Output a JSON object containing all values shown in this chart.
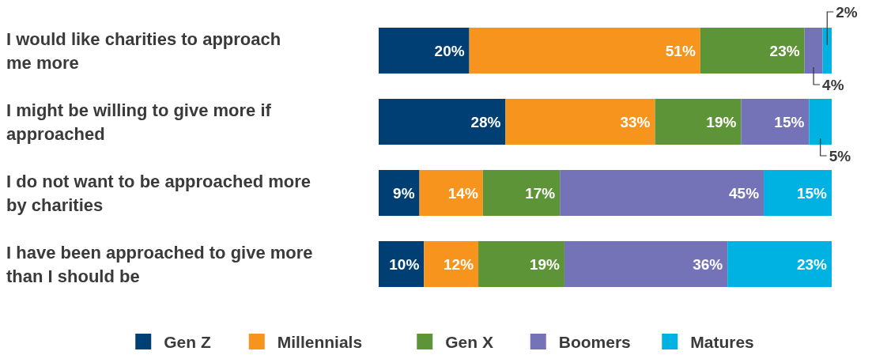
{
  "chart_data": {
    "type": "bar",
    "orientation": "horizontal",
    "stacked": true,
    "categories": [
      "I would like charities to approach me more",
      "I might be willing to give more if approached",
      "I do not want to be approached more by charities",
      "I have been approached to give more than I should be"
    ],
    "series": [
      {
        "name": "Gen Z",
        "color": "#003f73",
        "values": [
          20,
          28,
          9,
          10
        ],
        "value_labels": [
          "20%",
          "28%",
          "9%",
          "10%"
        ]
      },
      {
        "name": "Millennials",
        "color": "#f7941d",
        "values": [
          51,
          33,
          14,
          12
        ],
        "value_labels": [
          "51%",
          "33%",
          "14%",
          "12%"
        ]
      },
      {
        "name": "Gen X",
        "color": "#5e9438",
        "values": [
          23,
          19,
          17,
          19
        ],
        "value_labels": [
          "23%",
          "19%",
          "17%",
          "19%"
        ]
      },
      {
        "name": "Boomers",
        "color": "#7473b8",
        "values": [
          4,
          15,
          45,
          36
        ],
        "value_labels": [
          "4%",
          "15%",
          "45%",
          "36%"
        ]
      },
      {
        "name": "Matures",
        "color": "#00b2e2",
        "values": [
          2,
          5,
          15,
          23
        ],
        "value_labels": [
          "2%",
          "5%",
          "15%",
          "23%"
        ]
      }
    ],
    "tick_labels": "y",
    "legend": "bottom"
  }
}
